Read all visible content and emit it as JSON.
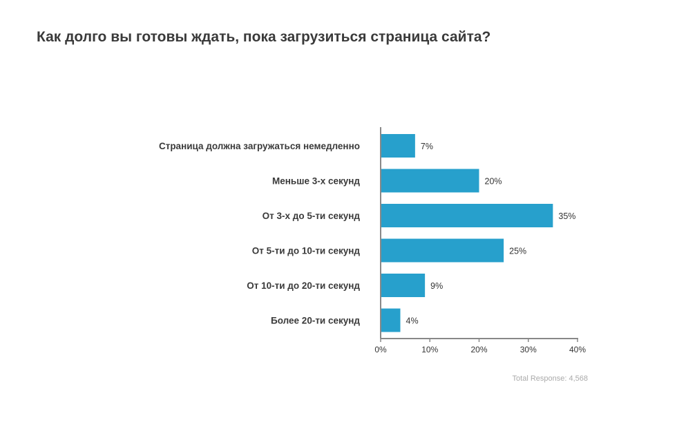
{
  "chart_data": {
    "type": "bar",
    "orientation": "horizontal",
    "title": "Как долго вы готовы ждать, пока загрузиться страница сайта?",
    "categories": [
      "Страница должна загружаться немедленно",
      "Меньше 3-х секунд",
      "От 3-х до 5-ти секунд",
      "От 5-ти до 10-ти секунд",
      "От 10-ти до 20-ти секунд",
      "Более 20-ти секунд"
    ],
    "values": [
      7,
      20,
      35,
      25,
      9,
      4
    ],
    "value_labels": [
      "7%",
      "20%",
      "35%",
      "25%",
      "9%",
      "4%"
    ],
    "xlim": [
      0,
      40
    ],
    "xticks": [
      0,
      10,
      20,
      30,
      40
    ],
    "xtick_labels": [
      "0%",
      "10%",
      "20%",
      "30%",
      "40%"
    ],
    "xlabel": "",
    "ylabel": "",
    "grid": false,
    "bar_color": "#27a0cc",
    "axis_color": "#888888"
  },
  "footnote": "Total Response: 4,568"
}
